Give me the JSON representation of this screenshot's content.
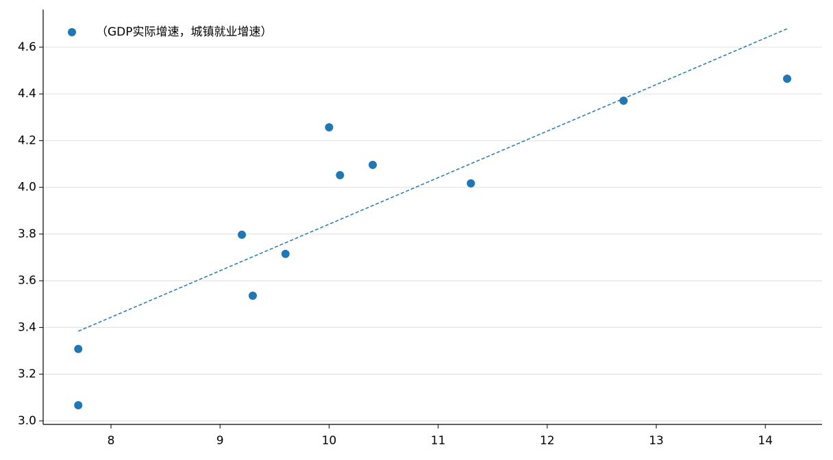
{
  "chart_data": {
    "type": "scatter",
    "series": [
      {
        "name": "（GDP实际增速，城镇就业增速）",
        "color": "#1f77b4",
        "x": [
          7.7,
          7.7,
          9.2,
          9.3,
          9.6,
          10.0,
          10.1,
          10.4,
          11.3,
          12.7,
          14.2
        ],
        "values": [
          3.308,
          3.067,
          3.797,
          3.536,
          3.715,
          4.257,
          4.052,
          4.096,
          4.017,
          4.371,
          4.465
        ]
      }
    ],
    "trendline": {
      "color": "#1f77b4",
      "x": [
        7.7,
        14.2
      ],
      "values": [
        3.384,
        4.679
      ]
    },
    "xlim": [
      7.378,
      14.52
    ],
    "ylim": [
      2.985,
      4.761
    ],
    "xticks": [
      8,
      9,
      10,
      11,
      12,
      13,
      14
    ],
    "yticks": [
      {
        "value": 3.0,
        "label": "3.0"
      },
      3.2,
      3.4,
      3.6,
      3.8,
      {
        "value": 4.0,
        "label": "4.0"
      },
      4.2,
      4.4,
      4.6
    ],
    "grid": "y",
    "legend": "upper left"
  }
}
